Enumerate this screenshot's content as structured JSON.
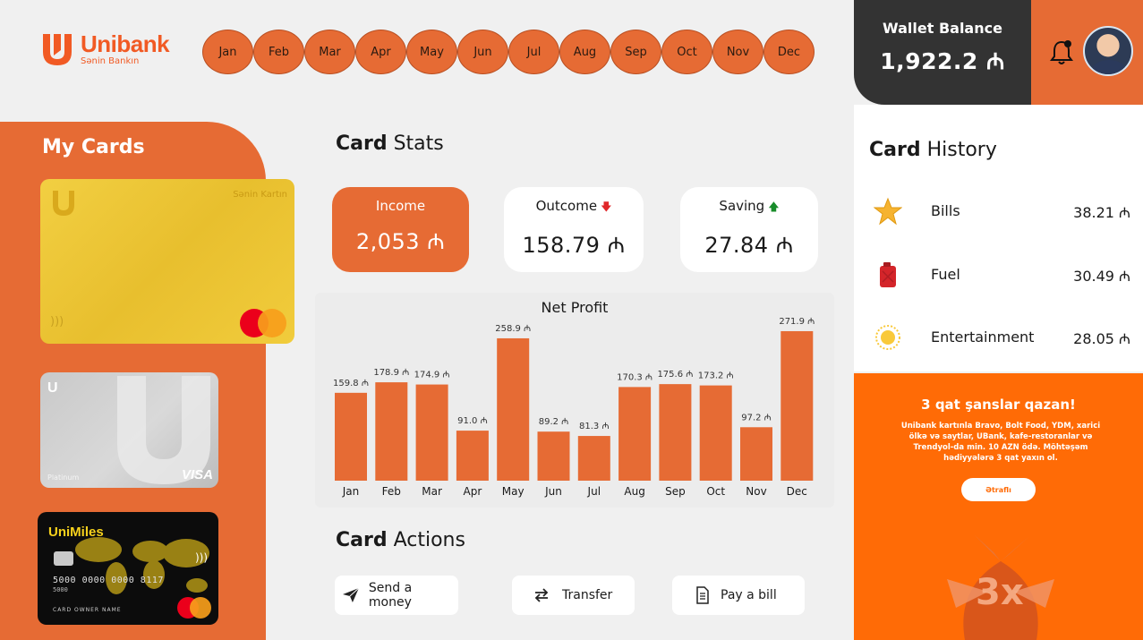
{
  "header": {
    "logo": {
      "name": "Unibank",
      "tagline": "Sənin Bankın"
    },
    "months": [
      "Jan",
      "Feb",
      "Mar",
      "Apr",
      "May",
      "Jun",
      "Jul",
      "Aug",
      "Sep",
      "Oct",
      "Nov",
      "Dec"
    ],
    "wallet": {
      "label": "Wallet Balance",
      "amount": "1,922.2 ₼"
    },
    "icons": [
      "bell-icon",
      "avatar"
    ]
  },
  "my_cards": {
    "title": "My Cards",
    "cards": [
      {
        "type": "gold",
        "name": "Sənin Kartın",
        "network": "mastercard"
      },
      {
        "type": "silver",
        "tier": "Platinum",
        "network": "VISA"
      },
      {
        "type": "black",
        "brand": "UniMiles",
        "number": "5000  0000  0000  8117",
        "sub": "5000",
        "owner": "CARD OWNER NAME",
        "network": "mastercard"
      }
    ]
  },
  "card_stats": {
    "title_bold": "Card",
    "title_rest": " Stats",
    "income": {
      "label": "Income",
      "value": "2,053 ₼"
    },
    "outcome": {
      "label": "Outcome",
      "value": "158.79 ₼",
      "trend": "down"
    },
    "saving": {
      "label": "Saving",
      "value": "27.84 ₼",
      "trend": "up"
    }
  },
  "chart_data": {
    "type": "bar",
    "title": "Net Profit",
    "categories": [
      "Jan",
      "Feb",
      "Mar",
      "Apr",
      "May",
      "Jun",
      "Jul",
      "Aug",
      "Sep",
      "Oct",
      "Nov",
      "Dec"
    ],
    "values": [
      159.8,
      178.9,
      174.9,
      91.0,
      258.9,
      89.2,
      81.3,
      170.3,
      175.6,
      173.2,
      97.2,
      271.9
    ],
    "labels": [
      "159.8 ₼",
      "178.9 ₼",
      "174.9 ₼",
      "91.0 ₼",
      "258.9 ₼",
      "89.2 ₼",
      "81.3 ₼",
      "170.3 ₼",
      "175.6 ₼",
      "173.2 ₼",
      "97.2 ₼",
      "271.9 ₼"
    ],
    "ylim": [
      0,
      280
    ],
    "color": "#e66b34",
    "grid": false,
    "legend": "none"
  },
  "card_actions": {
    "title_bold": "Card",
    "title_rest": " Actions",
    "send": "Send a money",
    "transfer": "Transfer",
    "bill": "Pay a bill"
  },
  "card_history": {
    "title_bold": "Card",
    "title_rest": " History",
    "items": [
      {
        "name": "Bills",
        "amount": "38.21 ₼",
        "icon": "star-icon"
      },
      {
        "name": "Fuel",
        "amount": "30.49 ₼",
        "icon": "fuel-can-icon"
      },
      {
        "name": "Entertainment",
        "amount": "28.05 ₼",
        "icon": "sun-icon"
      }
    ]
  },
  "promo": {
    "headline": "3 qat şanslar qazan!",
    "body": "Unibank kartınla Bravo, Bolt Food, YDM, xarici ölkə və saytlar, UBank, kafe-restoranlar və Trendyol-da min. 10 AZN ödə. Möhtəşəm hədiyyələrə 3 qat yaxın ol.",
    "button": "Ətraflı"
  },
  "colors": {
    "accent": "#e66b34",
    "dark": "#333333",
    "promo": "#ff6b06",
    "background": "#f0f0f0"
  }
}
